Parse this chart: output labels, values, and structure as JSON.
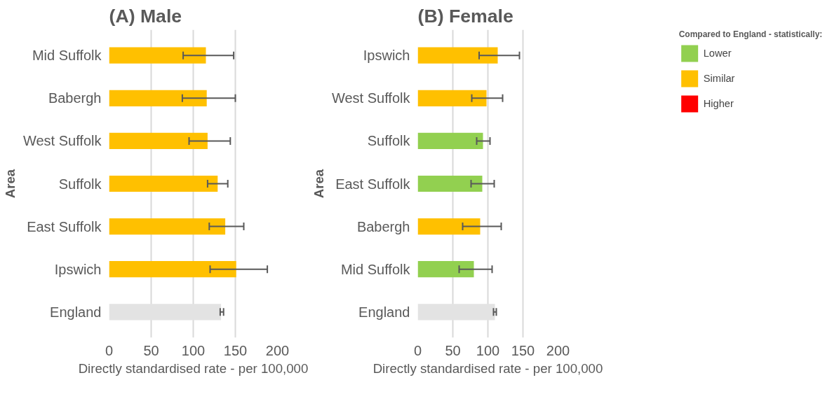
{
  "chart_data": [
    {
      "type": "bar",
      "orientation": "horizontal",
      "title": "(A) Male",
      "xlabel": "Directly standardised rate - per 100,000",
      "ylabel": "Area",
      "categories": [
        "Mid Suffolk",
        "Babergh",
        "West Suffolk",
        "Suffolk",
        "East Suffolk",
        "Ipswich",
        "England"
      ],
      "series": [
        {
          "color": "#ffc000",
          "values": [
            115,
            116,
            117,
            129,
            138,
            151,
            null
          ],
          "errors": [
            [
              88,
              148
            ],
            [
              87,
              150
            ],
            [
              95,
              144
            ],
            [
              117,
              141
            ],
            [
              119,
              160
            ],
            [
              120,
              188
            ],
            null
          ]
        },
        {
          "color": "#e3e3e3",
          "values": [
            null,
            null,
            null,
            null,
            null,
            null,
            133
          ],
          "errors": [
            null,
            null,
            null,
            null,
            null,
            null,
            [
              132,
              136
            ]
          ]
        }
      ],
      "xlim": [
        0,
        200
      ],
      "xticks": [
        0,
        50,
        100,
        150,
        200
      ],
      "grid": "x",
      "legend": false
    },
    {
      "type": "bar",
      "orientation": "horizontal",
      "title": "(B) Female",
      "xlabel": "Directly standardised rate - per 100,000",
      "ylabel": "Area",
      "legend_title": "Compared to England - statistically:",
      "categories": [
        "Ipswich",
        "West Suffolk",
        "Suffolk",
        "East Suffolk",
        "Babergh",
        "Mid Suffolk",
        "England"
      ],
      "series": [
        {
          "name": "Lower",
          "color": "#92d050",
          "values": [
            null,
            null,
            93,
            92,
            null,
            80,
            null
          ],
          "errors": [
            null,
            null,
            [
              84,
              103
            ],
            [
              76,
              109
            ],
            null,
            [
              59,
              106
            ],
            null
          ]
        },
        {
          "name": "Similar",
          "color": "#ffc000",
          "values": [
            114,
            98,
            null,
            null,
            89,
            null,
            null
          ],
          "errors": [
            [
              87.5,
              145
            ],
            [
              77,
              121
            ],
            null,
            null,
            [
              64,
              119
            ],
            null,
            null
          ]
        },
        {
          "name": "Higher",
          "color": "#ff0000",
          "values": [
            null,
            null,
            null,
            null,
            null,
            null,
            null
          ]
        },
        {
          "color": "#e3e3e3",
          "values": [
            null,
            null,
            null,
            null,
            null,
            null,
            110
          ],
          "errors": [
            null,
            null,
            null,
            null,
            null,
            null,
            [
              108,
              112
            ]
          ]
        }
      ],
      "xlim": [
        0,
        200
      ],
      "xticks": [
        0,
        50,
        100,
        150,
        200
      ],
      "grid": "x",
      "legend": "top right"
    }
  ]
}
